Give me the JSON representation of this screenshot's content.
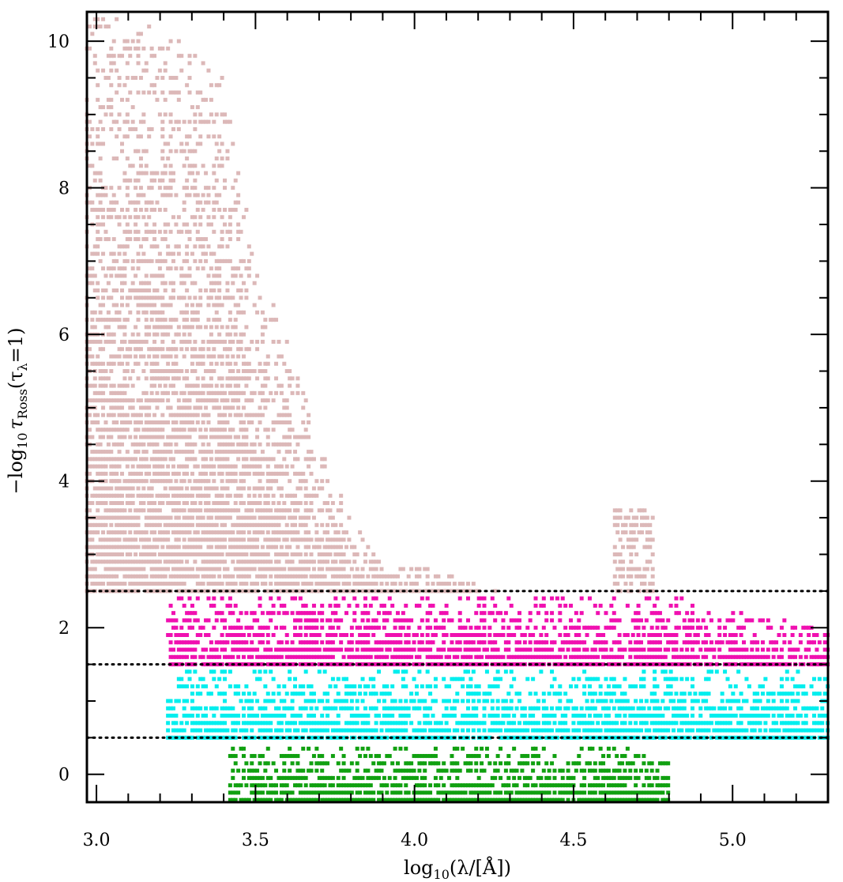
{
  "chart_data": {
    "type": "scatter",
    "title": "",
    "xlabel": "log10(λ/[Å])",
    "ylabel": "−log10 τRoss(τλ=1)",
    "xlabel_parts": {
      "pre": "log",
      "sub": "10",
      "post": "(λ/[Å])"
    },
    "ylabel_parts": {
      "pre": "−log",
      "sub1": "10",
      "tau": "τ",
      "sub2": "Ross",
      "paren": "(τ",
      "sub3": "λ",
      "post": "=1)"
    },
    "xlim": [
      2.97,
      5.3
    ],
    "ylim": [
      -0.38,
      10.4
    ],
    "x_ticks": [
      "3.0",
      "3.5",
      "4.0",
      "4.5",
      "5.0"
    ],
    "x_tick_values": [
      3.0,
      3.5,
      4.0,
      4.5,
      5.0
    ],
    "y_ticks": [
      "0",
      "2",
      "4",
      "6",
      "8",
      "10"
    ],
    "y_tick_values": [
      0,
      2,
      4,
      6,
      8,
      10
    ],
    "grid": false,
    "reference_lines": [
      2.5,
      1.5,
      0.5
    ],
    "reference_line_style": "dotted",
    "series": [
      {
        "color": "#dcb8b8",
        "y_range": [
          2.5,
          10.4
        ],
        "envelope": [
          [
            2.97,
            10.4
          ],
          [
            3.1,
            10.3
          ],
          [
            3.25,
            10.2
          ],
          [
            3.4,
            9.5
          ],
          [
            3.5,
            7.0
          ],
          [
            3.6,
            6.0
          ],
          [
            3.7,
            4.5
          ],
          [
            3.8,
            3.5
          ],
          [
            3.9,
            3.0
          ],
          [
            4.0,
            2.9
          ],
          [
            4.1,
            2.8
          ],
          [
            4.2,
            2.6
          ],
          [
            4.3,
            2.5
          ]
        ],
        "clusters": [
          {
            "x": [
              4.63,
              4.75
            ],
            "y": [
              2.5,
              3.7
            ]
          }
        ]
      },
      {
        "color": "#f010b0",
        "y_range": [
          1.5,
          2.5
        ],
        "envelope": [
          [
            3.22,
            2.5
          ],
          [
            4.5,
            2.5
          ],
          [
            4.63,
            2.5
          ],
          [
            4.76,
            2.5
          ],
          [
            5.05,
            2.2
          ],
          [
            5.3,
            2.0
          ]
        ]
      },
      {
        "color": "#00eeee",
        "y_range": [
          0.5,
          1.5
        ],
        "envelope": [
          [
            3.22,
            1.4
          ],
          [
            3.3,
            1.45
          ],
          [
            4.5,
            1.45
          ],
          [
            4.8,
            1.45
          ],
          [
            5.3,
            1.45
          ]
        ]
      },
      {
        "color": "#10a010",
        "y_range": [
          -0.35,
          0.5
        ],
        "envelope": [
          [
            3.42,
            0.45
          ],
          [
            3.9,
            0.45
          ],
          [
            4.2,
            0.45
          ],
          [
            4.6,
            0.45
          ],
          [
            4.8,
            0.45
          ]
        ]
      }
    ]
  }
}
